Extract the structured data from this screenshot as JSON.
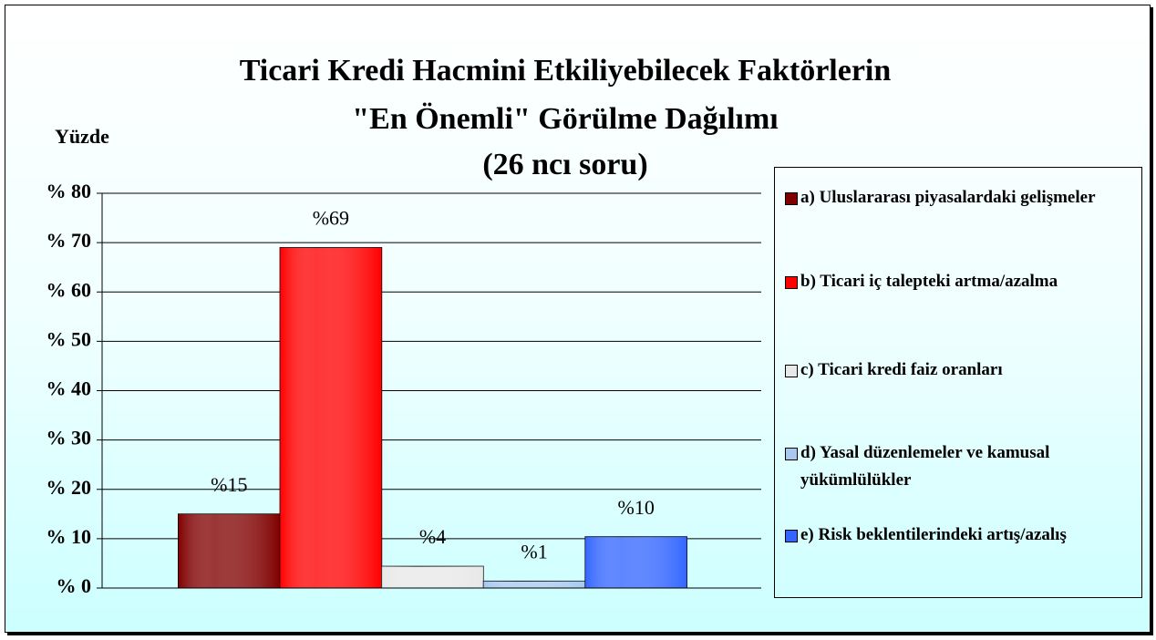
{
  "chart_data": {
    "type": "bar",
    "title": [
      "Ticari Kredi Hacmini Etkiliyebilecek Faktörlerin",
      "\"En Önemli\" Görülme Dağılımı"
    ],
    "subtitle": "(26 ncı soru)",
    "y_label": "Yüzde",
    "series": [
      {
        "name": "a) Uluslararası piyasalardaki gelişmeler",
        "color": "#800000",
        "values": [
          15
        ],
        "value_labels": [
          "%15"
        ]
      },
      {
        "name": "b) Ticari iç talepteki artma/azalma",
        "color": "#ff0000",
        "values": [
          69
        ],
        "value_labels": [
          "%69"
        ]
      },
      {
        "name": "c) Ticari kredi faiz oranları",
        "color": "#e8e8e8",
        "values": [
          4.4
        ],
        "value_labels": [
          "%4"
        ]
      },
      {
        "name": "d) Yasal düzenlemeler ve kamusal yükümlülükler",
        "color": "#a8c8f0",
        "values": [
          1.4
        ],
        "value_labels": [
          "%1"
        ]
      },
      {
        "name": "e) Risk beklentilerindeki artış/azalış",
        "color": "#3366ff",
        "values": [
          10.4
        ],
        "value_labels": [
          "%10"
        ]
      }
    ],
    "ylim": [
      0,
      80
    ],
    "yticks": [
      {
        "value": 0,
        "label": "% 0"
      },
      {
        "value": 10,
        "label": "% 10"
      },
      {
        "value": 20,
        "label": "% 20"
      },
      {
        "value": 30,
        "label": "% 30"
      },
      {
        "value": 40,
        "label": "% 40"
      },
      {
        "value": 50,
        "label": "% 50"
      },
      {
        "value": 60,
        "label": "% 60"
      },
      {
        "value": 70,
        "label": "% 70"
      },
      {
        "value": 80,
        "label": "% 80"
      }
    ],
    "grid": true,
    "legend": "right"
  }
}
